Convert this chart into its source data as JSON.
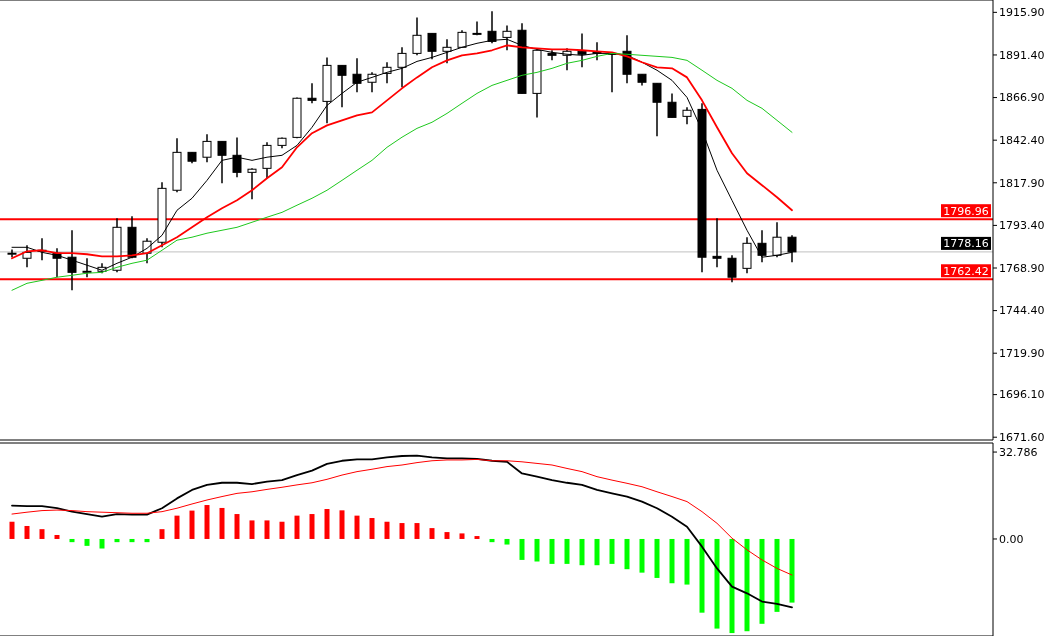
{
  "chart_data": [
    {
      "type": "candlestick",
      "categories": [
        null,
        null,
        null,
        null,
        null,
        null,
        null,
        null,
        null,
        null,
        null,
        null,
        null,
        null,
        null,
        null,
        null,
        null,
        null,
        null,
        null,
        null,
        null,
        null,
        null,
        null,
        null,
        null,
        null,
        null,
        null,
        null,
        null,
        null,
        null,
        null,
        null,
        null,
        null,
        null,
        null,
        null,
        null,
        null,
        null,
        null,
        null,
        null,
        null,
        null,
        null,
        null,
        null
      ],
      "ohlc": [
        [
          1777.4,
          1779.6,
          1775.1,
          1777.4
        ],
        [
          1774.5,
          1782.0,
          1769.3,
          1777.9
        ],
        [
          1779.1,
          1786.0,
          1773.4,
          1779.1
        ],
        [
          1777.4,
          1780.2,
          1763.6,
          1774.5
        ],
        [
          1775.1,
          1790.6,
          1756.1,
          1766.4
        ],
        [
          1767.0,
          1774.5,
          1763.6,
          1767.0
        ],
        [
          1767.0,
          1771.6,
          1765.9,
          1769.3
        ],
        [
          1767.6,
          1797.5,
          1766.4,
          1792.3
        ],
        [
          1792.3,
          1798.6,
          1774.5,
          1775.1
        ],
        [
          1777.4,
          1786.0,
          1771.6,
          1784.3
        ],
        [
          1783.7,
          1818.2,
          1780.8,
          1814.7
        ],
        [
          1813.6,
          1843.5,
          1812.4,
          1835.4
        ],
        [
          1835.4,
          1835.4,
          1829.1,
          1830.3
        ],
        [
          1832.6,
          1845.8,
          1829.7,
          1841.7
        ],
        [
          1841.7,
          1841.7,
          1817.6,
          1833.7
        ],
        [
          1833.7,
          1844.0,
          1821.1,
          1823.9
        ],
        [
          1823.9,
          1826.2,
          1808.4,
          1825.7
        ],
        [
          1826.2,
          1841.2,
          1820.5,
          1839.4
        ],
        [
          1839.4,
          1844.0,
          1837.7,
          1843.5
        ],
        [
          1844.0,
          1867.0,
          1843.5,
          1866.5
        ],
        [
          1866.5,
          1875.1,
          1863.6,
          1865.3
        ],
        [
          1864.7,
          1890.0,
          1852.1,
          1885.4
        ],
        [
          1885.4,
          1885.4,
          1861.3,
          1879.7
        ],
        [
          1880.3,
          1889.5,
          1869.9,
          1875.1
        ],
        [
          1875.7,
          1881.4,
          1869.9,
          1880.3
        ],
        [
          1880.8,
          1887.2,
          1875.1,
          1884.3
        ],
        [
          1884.3,
          1895.8,
          1872.8,
          1892.3
        ],
        [
          1892.3,
          1913.0,
          1891.2,
          1902.7
        ],
        [
          1903.8,
          1903.8,
          1888.9,
          1893.5
        ],
        [
          1893.5,
          1900.4,
          1886.6,
          1895.8
        ],
        [
          1895.8,
          1905.6,
          1895.8,
          1904.4
        ],
        [
          1903.8,
          1910.7,
          1902.7,
          1903.8
        ],
        [
          1905.0,
          1916.5,
          1898.1,
          1899.2
        ],
        [
          1901.5,
          1908.4,
          1894.1,
          1905.0
        ],
        [
          1905.6,
          1909.6,
          1869.3,
          1869.3
        ],
        [
          1869.3,
          1895.2,
          1855.5,
          1894.1
        ],
        [
          1892.3,
          1894.1,
          1888.3,
          1891.2
        ],
        [
          1891.2,
          1895.2,
          1882.6,
          1893.5
        ],
        [
          1893.5,
          1903.8,
          1884.3,
          1891.8
        ],
        [
          1892.9,
          1898.7,
          1888.3,
          1892.9
        ],
        [
          1892.3,
          1892.3,
          1869.9,
          1891.8
        ],
        [
          1893.5,
          1902.7,
          1875.1,
          1880.3
        ],
        [
          1880.3,
          1880.3,
          1873.9,
          1875.7
        ],
        [
          1875.1,
          1875.1,
          1844.6,
          1864.2
        ],
        [
          1864.2,
          1869.3,
          1855.5,
          1855.5
        ],
        [
          1856.1,
          1861.3,
          1851.5,
          1859.6
        ],
        [
          1860.1,
          1863.6,
          1766.4,
          1775.1
        ],
        [
          1775.6,
          1797.5,
          1769.3,
          1774.5
        ],
        [
          1774.5,
          1776.2,
          1760.7,
          1763.6
        ],
        [
          1768.7,
          1786.6,
          1765.9,
          1783.1
        ],
        [
          1783.1,
          1790.6,
          1772.2,
          1776.2
        ],
        [
          1776.2,
          1795.2,
          1775.1,
          1786.6
        ],
        [
          1786.6,
          1787.7,
          1772.2,
          1778.16
        ]
      ],
      "series": [
        {
          "type": "line",
          "color": "#000000",
          "values": [
            1780.8,
            1780.8,
            1777.9,
            1776.2,
            1773.4,
            1770.5,
            1767.6,
            1771.6,
            1775.1,
            1780.2,
            1787.7,
            1802.1,
            1809.0,
            1819.3,
            1830.8,
            1832.6,
            1830.8,
            1832.6,
            1833.7,
            1839.4,
            1849.8,
            1862.4,
            1869.3,
            1875.7,
            1878.5,
            1881.4,
            1883.7,
            1887.7,
            1890.0,
            1892.9,
            1895.8,
            1898.1,
            1899.8,
            1900.4,
            1896.9,
            1894.6,
            1892.9,
            1891.8,
            1891.2,
            1892.3,
            1892.3,
            1891.2,
            1887.2,
            1882.6,
            1876.8,
            1867.0,
            1848.1,
            1825.1,
            1807.8,
            1790.6,
            1775.1,
            1776.2,
            1777.9
          ]
        },
        {
          "type": "line",
          "color": "#ff0000",
          "values": [
            1774.5,
            1778.5,
            1779.1,
            1777.4,
            1777.4,
            1776.8,
            1775.6,
            1775.6,
            1776.2,
            1777.4,
            1782.0,
            1786.6,
            1792.3,
            1798.1,
            1803.3,
            1807.9,
            1813.6,
            1820.5,
            1826.8,
            1838.3,
            1846.4,
            1850.9,
            1853.8,
            1856.7,
            1858.4,
            1865.3,
            1872.2,
            1878.5,
            1884.3,
            1888.3,
            1891.2,
            1892.3,
            1894.1,
            1896.9,
            1895.8,
            1895.2,
            1894.6,
            1894.6,
            1894.1,
            1893.5,
            1892.9,
            1890.6,
            1887.2,
            1884.3,
            1883.7,
            1878.5,
            1865.3,
            1849.8,
            1834.9,
            1823.4,
            1816.5,
            1809.6,
            1802.1
          ]
        },
        {
          "type": "line",
          "color": "#1ec81e",
          "values": [
            1756.1,
            1760.1,
            1761.8,
            1763.6,
            1764.7,
            1765.9,
            1766.4,
            1769.3,
            1771.6,
            1773.4,
            1779.1,
            1784.9,
            1786.6,
            1788.9,
            1790.6,
            1792.3,
            1795.2,
            1798.1,
            1800.9,
            1805.0,
            1809.0,
            1813.6,
            1819.3,
            1825.1,
            1830.8,
            1838.3,
            1844.1,
            1849.2,
            1852.7,
            1857.8,
            1863.6,
            1869.3,
            1873.9,
            1876.8,
            1879.7,
            1881.4,
            1883.7,
            1886.6,
            1888.3,
            1890.6,
            1892.3,
            1891.8,
            1891.2,
            1890.6,
            1890.0,
            1888.3,
            1882.6,
            1876.8,
            1872.2,
            1865.3,
            1860.7,
            1853.8,
            1846.9
          ]
        }
      ],
      "ylim": [
        1670,
        1923
      ],
      "yticks": [
        {
          "value": 1915.9,
          "label": "1915.90"
        },
        {
          "value": 1891.4,
          "label": "1891.40"
        },
        {
          "value": 1866.9,
          "label": "1866.90"
        },
        {
          "value": 1842.4,
          "label": "1842.40"
        },
        {
          "value": 1817.9,
          "label": "1817.90"
        },
        {
          "value": 1793.4,
          "label": "1793.40"
        },
        {
          "value": 1768.9,
          "label": "1768.90"
        },
        {
          "value": 1744.4,
          "label": "1744.40"
        },
        {
          "value": 1719.9,
          "label": "1719.90"
        },
        {
          "value": 1696.1,
          "label": "1696.10"
        },
        {
          "value": 1671.6,
          "label": "1671.60"
        }
      ],
      "ref_lines": [
        {
          "axis": "y",
          "value": 1796.96,
          "label": "1796.96",
          "color": "#ff0000"
        },
        {
          "axis": "y",
          "value": 1762.42,
          "label": "1762.42",
          "color": "#ff0000"
        },
        {
          "axis": "y",
          "value": 1778.16,
          "label": "1778.16",
          "color": "#c0c0c0"
        }
      ],
      "tick_labels": "y"
    },
    {
      "type": "bar",
      "categories": [
        null,
        null,
        null,
        null,
        null,
        null,
        null,
        null,
        null,
        null,
        null,
        null,
        null,
        null,
        null,
        null,
        null,
        null,
        null,
        null,
        null,
        null,
        null,
        null,
        null,
        null,
        null,
        null,
        null,
        null,
        null,
        null,
        null,
        null,
        null,
        null,
        null,
        null,
        null,
        null,
        null,
        null,
        null,
        null,
        null,
        null,
        null,
        null,
        null,
        null,
        null,
        null,
        null
      ],
      "series": [
        {
          "type": "bar",
          "values": [
            6.5,
            4.9,
            3.7,
            1.5,
            -1.2,
            -2.6,
            -3.6,
            -1.2,
            -1.2,
            -1.2,
            3.7,
            8.8,
            10.7,
            12.8,
            11.7,
            9.4,
            7.0,
            7.0,
            6.5,
            8.8,
            9.4,
            11.3,
            10.8,
            8.8,
            7.9,
            6.5,
            6.0,
            6.0,
            4.1,
            2.6,
            2.1,
            1.1,
            -1.2,
            -2.1,
            -7.9,
            -8.5,
            -9.4,
            -9.4,
            -9.9,
            -9.9,
            -9.4,
            -11.4,
            -12.7,
            -14.7,
            -16.7,
            -17.2,
            -27.8,
            -33.8,
            -35.5,
            -34.8,
            -32.0,
            -27.5,
            -24.0
          ],
          "colors": [
            "#ff0000",
            "#ff0000",
            "#ff0000",
            "#ff0000",
            "#00ff00",
            "#00ff00",
            "#00ff00",
            "#00ff00",
            "#00ff00",
            "#00ff00",
            "#ff0000",
            "#ff0000",
            "#ff0000",
            "#ff0000",
            "#ff0000",
            "#ff0000",
            "#ff0000",
            "#ff0000",
            "#ff0000",
            "#ff0000",
            "#ff0000",
            "#ff0000",
            "#ff0000",
            "#ff0000",
            "#ff0000",
            "#ff0000",
            "#ff0000",
            "#ff0000",
            "#ff0000",
            "#ff0000",
            "#ff0000",
            "#ff0000",
            "#00ff00",
            "#00ff00",
            "#00ff00",
            "#00ff00",
            "#00ff00",
            "#00ff00",
            "#00ff00",
            "#00ff00",
            "#00ff00",
            "#00ff00",
            "#00ff00",
            "#00ff00",
            "#00ff00",
            "#00ff00",
            "#00ff00",
            "#00ff00",
            "#00ff00",
            "#00ff00",
            "#00ff00",
            "#00ff00",
            "#00ff00"
          ]
        },
        {
          "type": "line",
          "color": "#000000",
          "values": [
            12.6,
            12.4,
            12.4,
            11.6,
            10.3,
            9.4,
            8.4,
            9.4,
            9.2,
            9.2,
            11.6,
            15.3,
            18.5,
            20.4,
            21.2,
            21.2,
            20.7,
            21.6,
            22.2,
            24.1,
            25.8,
            28.3,
            29.5,
            30.0,
            30.0,
            30.8,
            31.3,
            31.4,
            30.8,
            30.4,
            30.4,
            30.2,
            29.5,
            29.1,
            24.7,
            23.5,
            22.2,
            21.2,
            20.4,
            18.5,
            17.2,
            16.0,
            14.1,
            11.6,
            8.4,
            4.6,
            -2.9,
            -11.1,
            -18.0,
            -20.5,
            -23.6,
            -24.5,
            -25.8
          ]
        },
        {
          "type": "line",
          "color": "#ff0000",
          "values": [
            9.4,
            10.1,
            10.7,
            10.9,
            10.7,
            10.3,
            10.1,
            9.9,
            9.7,
            9.7,
            10.3,
            11.6,
            13.2,
            14.7,
            16.0,
            17.2,
            17.8,
            18.7,
            19.5,
            20.4,
            21.2,
            22.5,
            24.1,
            25.4,
            26.3,
            27.3,
            27.9,
            28.8,
            29.5,
            29.8,
            29.8,
            30.0,
            29.5,
            29.5,
            29.1,
            28.5,
            27.9,
            26.6,
            25.4,
            23.5,
            22.2,
            21.0,
            19.7,
            17.8,
            16.0,
            14.1,
            10.3,
            5.9,
            0.3,
            -4.1,
            -7.9,
            -11.1,
            -13.6
          ]
        }
      ],
      "ylim": [
        -36.6,
        36.2
      ],
      "yticks": [
        32.786,
        {
          "value": 0,
          "label": "0.00"
        }
      ],
      "tick_labels": "y"
    }
  ]
}
